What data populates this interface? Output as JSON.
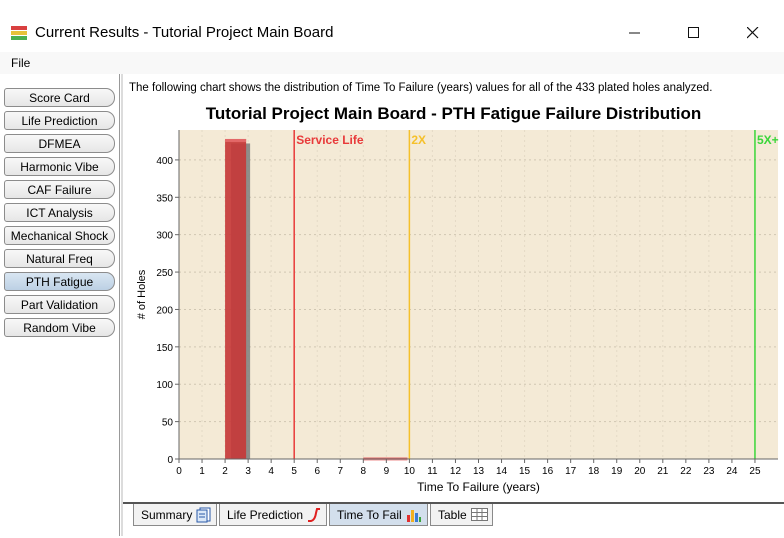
{
  "window": {
    "title": "Current Results - Tutorial Project Main Board",
    "minimize_icon": "minimize-icon",
    "maximize_icon": "maximize-icon",
    "close_icon": "close-icon"
  },
  "menu": {
    "file": "File"
  },
  "sidebar": {
    "items": [
      {
        "label": "Score Card",
        "active": false
      },
      {
        "label": "Life Prediction",
        "active": false
      },
      {
        "label": "DFMEA",
        "active": false
      },
      {
        "label": "Harmonic Vibe",
        "active": false
      },
      {
        "label": "CAF Failure",
        "active": false
      },
      {
        "label": "ICT Analysis",
        "active": false
      },
      {
        "label": "Mechanical Shock",
        "active": false
      },
      {
        "label": "Natural Freq",
        "active": false
      },
      {
        "label": "PTH Fatigue",
        "active": true
      },
      {
        "label": "Part Validation",
        "active": false
      },
      {
        "label": "Random Vibe",
        "active": false
      }
    ]
  },
  "main": {
    "intro": "The following chart shows the distribution of Time To Failure (years) values for all of the 433 plated holes analyzed."
  },
  "chart_data": {
    "type": "bar",
    "title": "Tutorial Project Main Board - PTH Fatigue Failure Distribution",
    "xlabel": "Time To Failure (years)",
    "ylabel": "# of Holes",
    "xlim": [
      0,
      26
    ],
    "ylim": [
      0,
      440
    ],
    "xticks": [
      0,
      1,
      2,
      3,
      4,
      5,
      6,
      7,
      8,
      9,
      10,
      11,
      12,
      13,
      14,
      15,
      16,
      17,
      18,
      19,
      20,
      21,
      22,
      23,
      24,
      25
    ],
    "yticks": [
      0,
      50,
      100,
      150,
      200,
      250,
      300,
      350,
      400
    ],
    "bars": [
      {
        "x0": 2.0,
        "x1": 3.0,
        "value": 428,
        "shadow_value": 422
      },
      {
        "x0": 8.0,
        "x1": 10.0,
        "value": 2,
        "shadow_value": 0
      }
    ],
    "markers": [
      {
        "x": 5,
        "label": "Service Life",
        "color": "#e83a3a"
      },
      {
        "x": 10,
        "label": "2X",
        "color": "#f5c02a"
      },
      {
        "x": 25,
        "label": "5X+",
        "color": "#3ad63a"
      }
    ],
    "plot_background": "#f4ead6",
    "bar_color": "#c53a3a",
    "shadow_color": "#7d7d7d",
    "grid": true
  },
  "tabs": [
    {
      "label": "Summary",
      "icon": "summary-doc-icon",
      "active": false
    },
    {
      "label": "Life Prediction",
      "icon": "life-curve-icon",
      "active": false
    },
    {
      "label": "Time To Fail",
      "icon": "bar-chart-icon",
      "active": true
    },
    {
      "label": "Table",
      "icon": "table-grid-icon",
      "active": false
    }
  ]
}
